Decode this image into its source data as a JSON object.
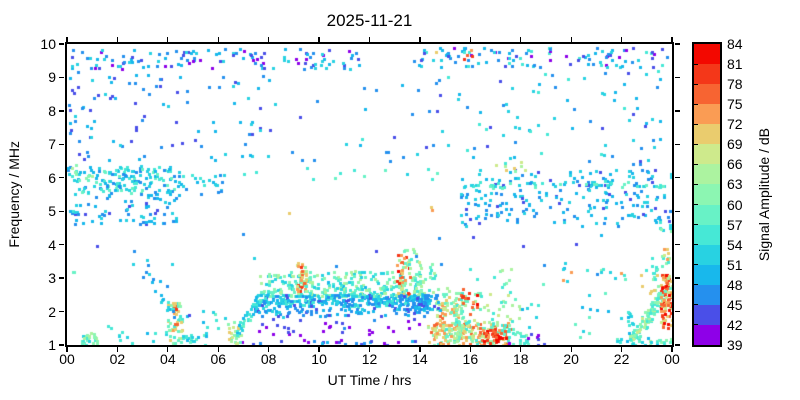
{
  "title": "2025-11-21",
  "x_axis": {
    "label": "UT Time / hrs",
    "min": 0,
    "max": 24,
    "tick_step_hours": 2,
    "tick_labels": [
      "00",
      "02",
      "04",
      "06",
      "08",
      "10",
      "12",
      "14",
      "16",
      "18",
      "20",
      "22",
      "00"
    ]
  },
  "y_axis": {
    "label": "Frequency / MHz",
    "min": 1,
    "max": 10,
    "tick_labels": [
      "1",
      "2",
      "3",
      "4",
      "5",
      "6",
      "7",
      "8",
      "9",
      "10"
    ]
  },
  "colorbar": {
    "label": "Signal Amplitude / dB",
    "min": 39,
    "max": 84,
    "step": 3,
    "tick_labels": [
      39,
      42,
      45,
      48,
      51,
      54,
      57,
      60,
      63,
      66,
      69,
      72,
      75,
      78,
      81,
      84
    ],
    "palette_low_to_high": [
      "#8E00E8",
      "#4A4FE8",
      "#2590EE",
      "#18B8EC",
      "#28D2E2",
      "#46E8D6",
      "#68F2C6",
      "#8CF6B2",
      "#ACF3A0",
      "#CEEA8C",
      "#EACC6E",
      "#FA9C54",
      "#F76432",
      "#F43719",
      "#F30800"
    ]
  },
  "chart_data": {
    "type": "scatter",
    "title": "2025-11-21",
    "xlabel": "UT Time / hrs",
    "ylabel": "Frequency / MHz",
    "colorbar_label": "Signal Amplitude / dB",
    "xlim": [
      0,
      24
    ],
    "ylim": [
      1,
      10
    ],
    "amplitude_range_db": [
      39,
      84
    ],
    "grid": false,
    "background": "#FFFFFF",
    "marker": "square",
    "marker_size_px": 3,
    "representation": "Dense noisy scatter field; points are reproduced from the cluster statistics below (t = UT hours, f = MHz, amp = dB, n = point count) using the seeded generator.",
    "seed": 20251121,
    "point_clusters": [
      {
        "name": "night-f-band-left",
        "t": [
          0,
          11.6
        ],
        "f": [
          9.25,
          9.85
        ],
        "n": 125,
        "amp": [
          40,
          54
        ]
      },
      {
        "name": "night-f-band-right",
        "t": [
          13.6,
          24
        ],
        "f": [
          9.3,
          9.9
        ],
        "n": 115,
        "amp": [
          40,
          56
        ]
      },
      {
        "name": "hot-specks-top",
        "t": [
          14.4,
          16.2
        ],
        "f": [
          9.5,
          9.85
        ],
        "n": 5,
        "amp": [
          70,
          84
        ]
      },
      {
        "name": "upper-scatter-left",
        "t": [
          0,
          8.2
        ],
        "f": [
          6.5,
          9.2
        ],
        "n": 100,
        "amp": [
          42,
          52
        ]
      },
      {
        "name": "upper-scatter-mid",
        "t": [
          8.2,
          13.8
        ],
        "f": [
          6.4,
          9.7
        ],
        "n": 20,
        "amp": [
          43,
          55
        ]
      },
      {
        "name": "upper-scatter-right",
        "t": [
          13.8,
          24
        ],
        "f": [
          6.4,
          9.25
        ],
        "n": 90,
        "amp": [
          43,
          56
        ]
      },
      {
        "name": "es-band-night-left",
        "t": [
          0,
          4.5
        ],
        "f": [
          5.5,
          6.35
        ],
        "n": 165,
        "amp": [
          46,
          60
        ]
      },
      {
        "name": "es-band-left-tail",
        "t": [
          4.5,
          6.2
        ],
        "f": [
          5.5,
          6.2
        ],
        "n": 22,
        "amp": [
          46,
          56
        ]
      },
      {
        "name": "es-low-left",
        "t": [
          0,
          4.5
        ],
        "f": [
          4.6,
          5.5
        ],
        "n": 70,
        "amp": [
          44,
          52
        ]
      },
      {
        "name": "left-edge-green",
        "t": [
          0,
          1.0
        ],
        "f": [
          5.9,
          6.4
        ],
        "n": 10,
        "amp": [
          56,
          68
        ]
      },
      {
        "name": "dotted-6mhz-day",
        "t": [
          5.6,
          15
        ],
        "f": [
          5.95,
          6.3
        ],
        "n": 14,
        "amp": [
          52,
          58
        ]
      },
      {
        "name": "orange-speck-0840",
        "t": [
          8.6,
          8.8
        ],
        "f": [
          4.95,
          5.1
        ],
        "n": 1,
        "amp": [
          68,
          72
        ]
      },
      {
        "name": "orange-speck-1425",
        "t": [
          14.3,
          14.5
        ],
        "f": [
          5.0,
          5.15
        ],
        "n": 2,
        "amp": [
          70,
          78
        ]
      },
      {
        "name": "es-band-evening",
        "t": [
          15.6,
          24
        ],
        "f": [
          4.55,
          6.25
        ],
        "n": 230,
        "amp": [
          44,
          54
        ]
      },
      {
        "name": "cyan-line-5p8-evening",
        "t": [
          16,
          24
        ],
        "f": [
          5.7,
          5.9
        ],
        "n": 42,
        "amp": [
          52,
          60
        ]
      },
      {
        "name": "yellow-specks-17",
        "t": [
          16.8,
          18.2
        ],
        "f": [
          6.2,
          6.55
        ],
        "n": 8,
        "amp": [
          60,
          70
        ]
      },
      {
        "name": "e-dome-top-day",
        "t": [
          7.6,
          14.2
        ],
        "f": [
          2.45,
          3.2
        ],
        "n": 320,
        "amp": [
          50,
          66
        ],
        "bias": 1.6
      },
      {
        "name": "dome-spike-0915",
        "t": [
          9.1,
          9.5
        ],
        "f": [
          2.6,
          3.45
        ],
        "n": 35,
        "amp": [
          62,
          80
        ]
      },
      {
        "name": "dome-spike-1320",
        "t": [
          13.1,
          13.6
        ],
        "f": [
          2.4,
          3.7
        ],
        "n": 50,
        "amp": [
          60,
          82
        ]
      },
      {
        "name": "green-top-1335",
        "t": [
          13.3,
          13.85
        ],
        "f": [
          3.4,
          3.95
        ],
        "n": 10,
        "amp": [
          56,
          64
        ]
      },
      {
        "name": "dome-spike-1350",
        "t": [
          13.8,
          14.05
        ],
        "f": [
          2.7,
          3.55
        ],
        "n": 15,
        "amp": [
          56,
          68
        ]
      },
      {
        "name": "e-core-band-day",
        "t": [
          7.5,
          14.35
        ],
        "f": [
          2.15,
          2.5
        ],
        "n": 300,
        "amp": [
          44,
          56
        ]
      },
      {
        "name": "e-lower-row-day",
        "t": [
          7.3,
          14.3
        ],
        "f": [
          1.85,
          2.12
        ],
        "n": 80,
        "amp": [
          44,
          52
        ]
      },
      {
        "name": "purple-row-day",
        "t": [
          7.2,
          14
        ],
        "f": [
          1.3,
          1.8
        ],
        "n": 32,
        "amp": [
          39,
          46
        ]
      },
      {
        "name": "baseline-dots-day",
        "t": [
          6.8,
          14.5
        ],
        "f": [
          1.0,
          1.15
        ],
        "n": 24,
        "amp": [
          39,
          50
        ]
      },
      {
        "name": "dawn-green-0640",
        "t": [
          6.35,
          6.9
        ],
        "f": [
          1.0,
          1.7
        ],
        "n": 30,
        "amp": [
          56,
          72
        ]
      },
      {
        "name": "dawn-rise-0700",
        "t": [
          6.7,
          7.7
        ],
        "f": [
          1.3,
          2.5
        ],
        "n": 45,
        "amp": [
          48,
          58
        ],
        "trend": "rise"
      },
      {
        "name": "dusk-spike-1430",
        "t": [
          14.35,
          14.6
        ],
        "f": [
          2.5,
          3.6
        ],
        "n": 12,
        "amp": [
          54,
          64
        ]
      },
      {
        "name": "dusk-cluster-1500",
        "t": [
          14.6,
          15.7
        ],
        "f": [
          1.3,
          2.7
        ],
        "n": 90,
        "amp": [
          58,
          76
        ]
      },
      {
        "name": "dusk-low-band",
        "t": [
          14.3,
          17.6
        ],
        "f": [
          1.0,
          1.65
        ],
        "n": 190,
        "amp": [
          56,
          78
        ]
      },
      {
        "name": "dusk-red-core-1700",
        "t": [
          16.5,
          17.4
        ],
        "f": [
          1.05,
          1.5
        ],
        "n": 40,
        "amp": [
          74,
          84
        ]
      },
      {
        "name": "blue-patch-1400",
        "t": [
          13.6,
          14.8
        ],
        "f": [
          2.05,
          2.5
        ],
        "n": 60,
        "amp": [
          44,
          52
        ]
      },
      {
        "name": "dusk-mid-green",
        "t": [
          15.3,
          18
        ],
        "f": [
          1.6,
          2.6
        ],
        "n": 70,
        "amp": [
          54,
          68
        ]
      },
      {
        "name": "dusk-red-specks-1600",
        "t": [
          15.6,
          16.3
        ],
        "f": [
          1.9,
          2.6
        ],
        "n": 14,
        "amp": [
          72,
          82
        ]
      },
      {
        "name": "green-specks-17-18",
        "t": [
          16,
          18.3
        ],
        "f": [
          2.7,
          3.3
        ],
        "n": 10,
        "amp": [
          54,
          64
        ]
      },
      {
        "name": "dusk-green-fringe",
        "t": [
          17.2,
          18.3
        ],
        "f": [
          1.0,
          1.6
        ],
        "n": 25,
        "amp": [
          54,
          62
        ]
      },
      {
        "name": "evening-sparse-low",
        "t": [
          18,
          22.2
        ],
        "f": [
          1.0,
          3.5
        ],
        "n": 26,
        "amp": [
          46,
          58
        ]
      },
      {
        "name": "purple-specks-evening",
        "t": [
          17.3,
          19.2
        ],
        "f": [
          1.0,
          1.4
        ],
        "n": 8,
        "amp": [
          39,
          45
        ]
      },
      {
        "name": "row-3mhz-evening",
        "t": [
          19.5,
          23.5
        ],
        "f": [
          2.9,
          3.3
        ],
        "n": 14,
        "amp": [
          50,
          74
        ]
      },
      {
        "name": "cyan-column-2215",
        "t": [
          22.2,
          22.45
        ],
        "f": [
          1.2,
          2.0
        ],
        "n": 10,
        "amp": [
          50,
          58
        ]
      },
      {
        "name": "late-night-rise",
        "t": [
          22.3,
          23.7
        ],
        "f": [
          1.0,
          2.6
        ],
        "n": 110,
        "amp": [
          54,
          68
        ],
        "trend": "rise"
      },
      {
        "name": "midnight-red-column",
        "t": [
          23.55,
          24
        ],
        "f": [
          1.5,
          3.1
        ],
        "n": 100,
        "amp": [
          66,
          84
        ]
      },
      {
        "name": "row-2p6-late",
        "t": [
          22.7,
          24
        ],
        "f": [
          2.55,
          2.78
        ],
        "n": 12,
        "amp": [
          56,
          72
        ]
      },
      {
        "name": "late-green-high",
        "t": [
          23.2,
          24
        ],
        "f": [
          2.9,
          3.7
        ],
        "n": 18,
        "amp": [
          54,
          66
        ]
      },
      {
        "name": "late-orange-top",
        "t": [
          23.5,
          24
        ],
        "f": [
          3.3,
          4.05
        ],
        "n": 5,
        "amp": [
          64,
          74
        ]
      },
      {
        "name": "late-green-4p7",
        "t": [
          23.5,
          24
        ],
        "f": [
          4.4,
          4.85
        ],
        "n": 6,
        "amp": [
          52,
          62
        ]
      },
      {
        "name": "baseline-late",
        "t": [
          21.8,
          24
        ],
        "f": [
          1.0,
          1.2
        ],
        "n": 30,
        "amp": [
          50,
          64
        ]
      },
      {
        "name": "night-cluster-0050",
        "t": [
          0.55,
          1.25
        ],
        "f": [
          1.0,
          1.4
        ],
        "n": 28,
        "amp": [
          52,
          64
        ]
      },
      {
        "name": "night-spike-0415",
        "t": [
          4.0,
          4.6
        ],
        "f": [
          1.0,
          2.3
        ],
        "n": 45,
        "amp": [
          54,
          72
        ]
      },
      {
        "name": "night-spike-core",
        "t": [
          4.15,
          4.4
        ],
        "f": [
          1.3,
          2.2
        ],
        "n": 12,
        "amp": [
          70,
          80
        ]
      },
      {
        "name": "night-cyan-0500",
        "t": [
          4.6,
          5.6
        ],
        "f": [
          1.0,
          1.35
        ],
        "n": 18,
        "amp": [
          50,
          58
        ]
      },
      {
        "name": "descending-trace-am",
        "t": [
          2.6,
          5.2
        ],
        "f": [
          1.2,
          3.8
        ],
        "n": 22,
        "amp": [
          44,
          52
        ],
        "trend": "fall"
      },
      {
        "name": "sparse-low-01-04",
        "t": [
          1.3,
          4.0
        ],
        "f": [
          1.0,
          1.6
        ],
        "n": 14,
        "amp": [
          48,
          58
        ]
      },
      {
        "name": "predawn-pairs",
        "t": [
          5.2,
          6.3
        ],
        "f": [
          1.5,
          2.05
        ],
        "n": 8,
        "amp": [
          50,
          58
        ]
      },
      {
        "name": "sparse-mid-random",
        "t": [
          0.2,
          23.8
        ],
        "f": [
          3.3,
          4.45
        ],
        "n": 14,
        "amp": [
          42,
          54
        ]
      },
      {
        "name": "left-edge-dots",
        "t": [
          0,
          0.35
        ],
        "f": [
          4.8,
          5.2
        ],
        "n": 4,
        "amp": [
          46,
          56
        ]
      },
      {
        "name": "left-edge-green-3mhz",
        "t": [
          0.1,
          0.5
        ],
        "f": [
          3.1,
          3.3
        ],
        "n": 2,
        "amp": [
          56,
          62
        ]
      }
    ]
  }
}
